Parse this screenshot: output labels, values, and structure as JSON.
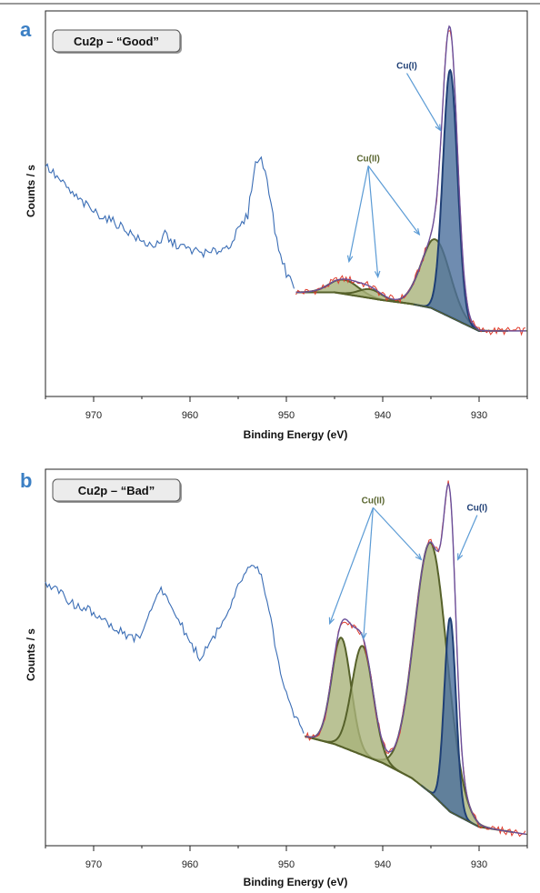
{
  "chart_data": [
    {
      "type": "line",
      "panel_label": "a",
      "title": "Cu2p – “Good”",
      "xlabel": "Binding Energy (eV)",
      "ylabel": "Counts / s",
      "x_reversed": true,
      "xlim": [
        975,
        925
      ],
      "ylim": [
        0,
        100
      ],
      "xticks": [
        970,
        960,
        950,
        940,
        930
      ],
      "grid": false,
      "envelope_peak": 96,
      "survey": [
        [
          975,
          60
        ],
        [
          972,
          52
        ],
        [
          970,
          48
        ],
        [
          967,
          44
        ],
        [
          965,
          40
        ],
        [
          963,
          39
        ],
        [
          962.7,
          43
        ],
        [
          962,
          40
        ],
        [
          960,
          38
        ],
        [
          958,
          37
        ],
        [
          956,
          39
        ],
        [
          954,
          47
        ],
        [
          953.3,
          60
        ],
        [
          952.7,
          62
        ],
        [
          952,
          57
        ],
        [
          951,
          40
        ],
        [
          950,
          32
        ],
        [
          949,
          28
        ]
      ],
      "background": [
        [
          949,
          27
        ],
        [
          945,
          27
        ],
        [
          940,
          25
        ],
        [
          937,
          24
        ],
        [
          935,
          23
        ],
        [
          930,
          17
        ],
        [
          925,
          17
        ]
      ],
      "components": [
        {
          "name": "Cu(I)",
          "color": "#2f5d95",
          "center": 933,
          "height": 70,
          "width": 0.75
        },
        {
          "name": "Cu(II)",
          "color": "#9aa65a",
          "center": 934.5,
          "height": 20,
          "width": 1.5
        },
        {
          "name": "Cu(II)",
          "color": "#9aa65a",
          "center": 944,
          "height": 4,
          "width": 1.5
        },
        {
          "name": "Cu(II)",
          "color": "#9aa65a",
          "center": 941.3,
          "height": 2.5,
          "width": 1.2
        }
      ],
      "annotations": [
        {
          "text": "Cu(I)",
          "class": "cu1",
          "label_x": 937.5,
          "label_y": 85,
          "arrows": [
            [
              934,
              69
            ]
          ]
        },
        {
          "text": "Cu(II)",
          "class": "cu2",
          "label_x": 941.5,
          "label_y": 61,
          "arrows": [
            [
              943.5,
              35
            ],
            [
              940.5,
              31
            ],
            [
              936.2,
              42
            ]
          ]
        }
      ]
    },
    {
      "type": "line",
      "panel_label": "b",
      "title": "Cu2p – “Bad”",
      "xlabel": "Binding Energy (eV)",
      "ylabel": "Counts / s",
      "x_reversed": true,
      "xlim": [
        975,
        925
      ],
      "ylim": [
        0,
        100
      ],
      "xticks": [
        970,
        960,
        950,
        940,
        930
      ],
      "grid": false,
      "envelope_peak": 96,
      "survey": [
        [
          975,
          70
        ],
        [
          972,
          64
        ],
        [
          970,
          62
        ],
        [
          968,
          58
        ],
        [
          966,
          55
        ],
        [
          965,
          56
        ],
        [
          963.5,
          66
        ],
        [
          963,
          68
        ],
        [
          962,
          64
        ],
        [
          960,
          54
        ],
        [
          959,
          50
        ],
        [
          958,
          53
        ],
        [
          956,
          63
        ],
        [
          954,
          74
        ],
        [
          953,
          75
        ],
        [
          952,
          66
        ],
        [
          951,
          50
        ],
        [
          950,
          40
        ],
        [
          949,
          34
        ],
        [
          948,
          30
        ]
      ],
      "background": [
        [
          948,
          29
        ],
        [
          945,
          27
        ],
        [
          940,
          22
        ],
        [
          937,
          18
        ],
        [
          935,
          14
        ],
        [
          933,
          9
        ],
        [
          930,
          5
        ],
        [
          925,
          3
        ]
      ],
      "components": [
        {
          "name": "Cu(II)",
          "color": "#9aa65a",
          "center": 935,
          "height": 62,
          "width": 1.7
        },
        {
          "name": "Cu(I)",
          "color": "#2f5d95",
          "center": 933,
          "height": 48,
          "width": 0.6
        },
        {
          "name": "Cu(II)",
          "color": "#9aa65a",
          "center": 944.3,
          "height": 27,
          "width": 1.0
        },
        {
          "name": "Cu(II)",
          "color": "#9aa65a",
          "center": 942.1,
          "height": 27,
          "width": 1.1
        }
      ],
      "annotations": [
        {
          "text": "Cu(II)",
          "class": "cu2",
          "label_x": 941,
          "label_y": 91,
          "arrows": [
            [
              945.5,
              59
            ],
            [
              942,
              55
            ],
            [
              936,
              76
            ]
          ]
        },
        {
          "text": "Cu(I)",
          "class": "cu1",
          "label_x": 930.2,
          "label_y": 89,
          "arrows": [
            [
              932.2,
              76
            ]
          ]
        }
      ]
    }
  ],
  "colors": {
    "survey": "#3a6db5",
    "data_points": "#e03a2a",
    "envelope": "#6a4f9a",
    "cu_i_fill": "#4b6f9c",
    "cu_i_stroke": "#1f3f75",
    "cu_ii_fill": "#a9b37a",
    "cu_ii_stroke": "#56612a",
    "arrow": "#5b9bd5",
    "panel_letter": "#3b7fc4"
  }
}
